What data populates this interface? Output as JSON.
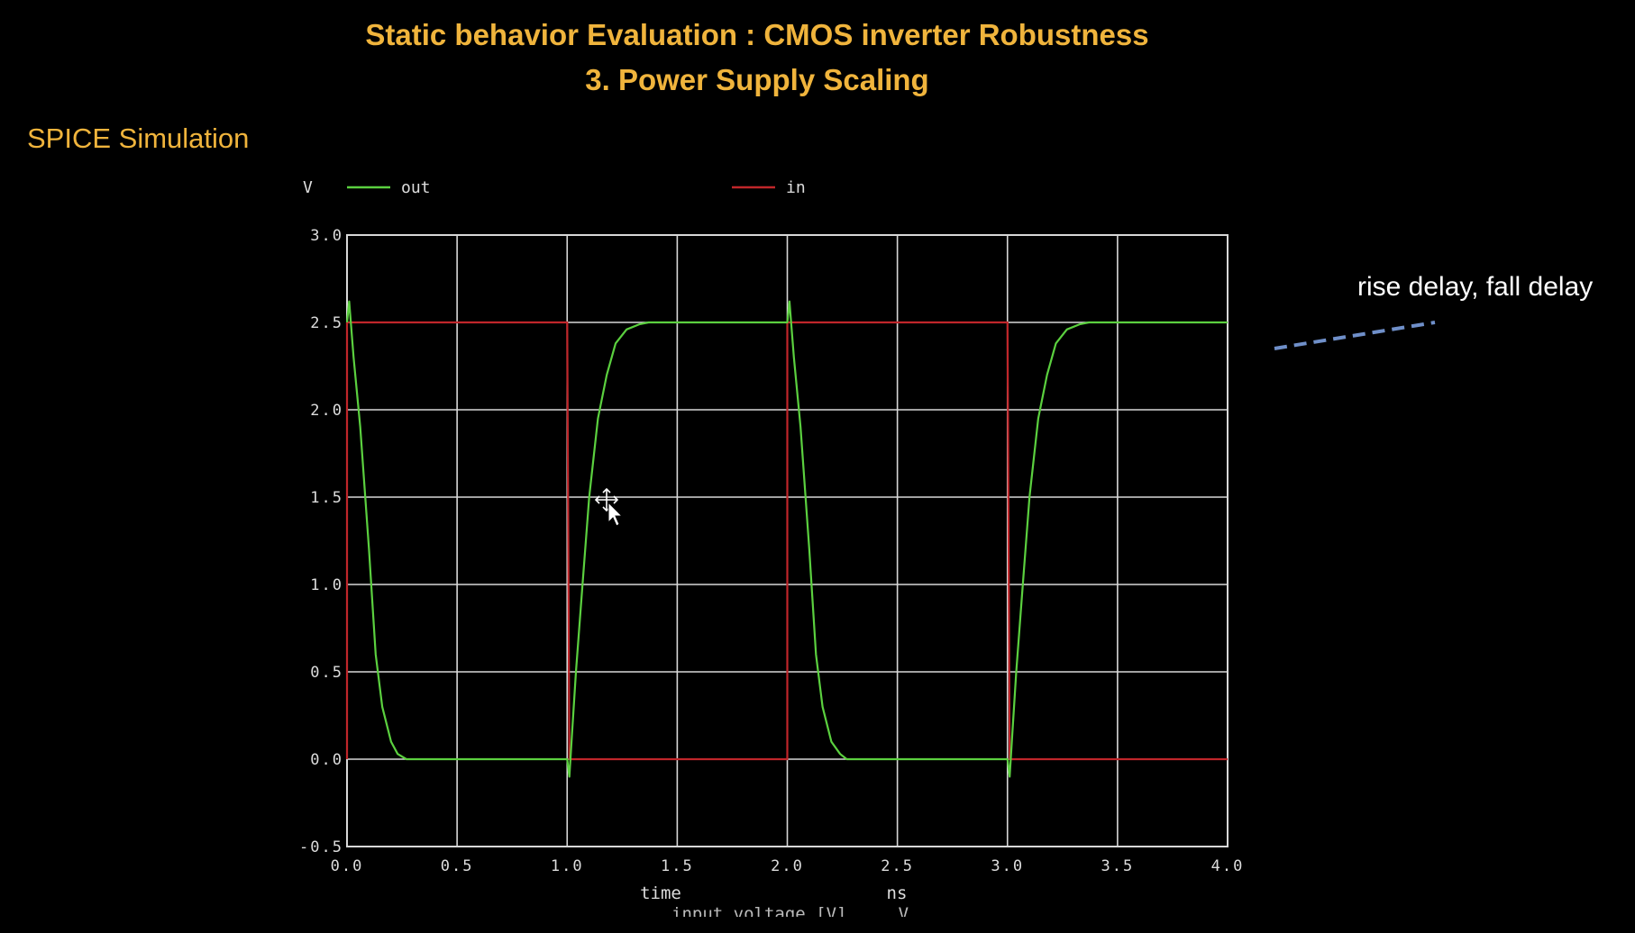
{
  "slide": {
    "title_line1": "Static behavior Evaluation : CMOS inverter Robustness",
    "title_line2": "3. Power Supply Scaling",
    "section_label": "SPICE Simulation",
    "annotation": "rise delay, fall delay",
    "annotation_arrow_color": "#6f8fc9",
    "below_caption": "input voltage [V]     V"
  },
  "chart_data": {
    "type": "line",
    "title": "",
    "ylabel": "V",
    "xlabel": "time",
    "xunit": "ns",
    "xlim": [
      0,
      4
    ],
    "ylim": [
      -0.5,
      3.0
    ],
    "xticks": [
      "0.0",
      "0.5",
      "1.0",
      "1.5",
      "2.0",
      "2.5",
      "3.0",
      "3.5",
      "4.0"
    ],
    "yticks": [
      "3.0",
      "2.5",
      "2.0",
      "1.5",
      "1.0",
      "0.5",
      "0.0",
      "-0.5"
    ],
    "grid": true,
    "legend_placement": "top",
    "series": [
      {
        "name": "out",
        "color": "#5bd03f",
        "x": [
          0.0,
          0.01,
          0.03,
          0.06,
          0.1,
          0.13,
          0.16,
          0.2,
          0.23,
          0.27,
          1.0,
          1.01,
          1.02,
          1.04,
          1.07,
          1.1,
          1.14,
          1.18,
          1.22,
          1.27,
          1.33,
          1.37,
          2.0,
          2.01,
          2.03,
          2.06,
          2.1,
          2.13,
          2.16,
          2.2,
          2.24,
          2.27,
          3.0,
          3.01,
          3.02,
          3.04,
          3.07,
          3.1,
          3.14,
          3.18,
          3.22,
          3.27,
          3.33,
          3.37,
          4.0
        ],
        "y": [
          2.5,
          2.62,
          2.3,
          1.9,
          1.2,
          0.6,
          0.3,
          0.1,
          0.03,
          0.0,
          0.0,
          -0.1,
          0.1,
          0.5,
          1.0,
          1.5,
          1.95,
          2.2,
          2.38,
          2.46,
          2.49,
          2.5,
          2.5,
          2.62,
          2.3,
          1.9,
          1.2,
          0.6,
          0.3,
          0.1,
          0.03,
          0.0,
          0.0,
          -0.1,
          0.1,
          0.5,
          1.0,
          1.5,
          1.95,
          2.2,
          2.38,
          2.46,
          2.49,
          2.5,
          2.5
        ]
      },
      {
        "name": "in",
        "color": "#c0262a",
        "x": [
          0.0,
          0.0,
          1.0,
          1.01,
          2.0,
          2.0,
          3.0,
          3.01,
          4.0
        ],
        "y": [
          0.0,
          2.5,
          2.5,
          0.0,
          0.0,
          2.5,
          2.5,
          0.0,
          0.0
        ]
      }
    ]
  }
}
